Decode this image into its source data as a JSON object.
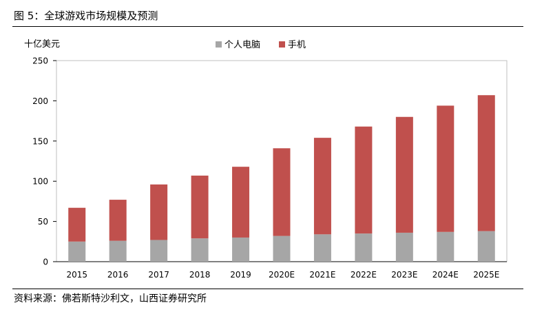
{
  "figure": {
    "title": "图 5：全球游戏市场规模及预测",
    "source": "资料来源：佛若斯特沙利文，山西证券研究所"
  },
  "chart_data": {
    "type": "bar",
    "stacked": true,
    "ylabel": "十亿美元",
    "xlabel": "",
    "ylim": [
      0,
      250
    ],
    "yticks": [
      0,
      50,
      100,
      150,
      200,
      250
    ],
    "grid": false,
    "legend_position": "top",
    "categories": [
      "2015",
      "2016",
      "2017",
      "2018",
      "2019",
      "2020E",
      "2021E",
      "2022E",
      "2023E",
      "2024E",
      "2025E"
    ],
    "series": [
      {
        "name": "个人电脑",
        "color": "#a6a6a6",
        "values": [
          25,
          26,
          27,
          29,
          30,
          32,
          34,
          35,
          36,
          37,
          38
        ]
      },
      {
        "name": "手机",
        "color": "#c0504d",
        "values": [
          42,
          51,
          69,
          78,
          88,
          109,
          120,
          133,
          144,
          157,
          169
        ]
      }
    ]
  }
}
